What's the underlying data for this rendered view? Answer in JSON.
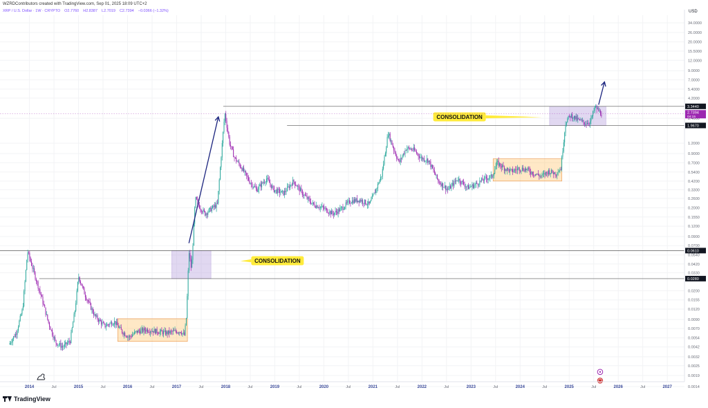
{
  "header": {
    "attribution": "WZRDContributors created with TradingView.com, Sep 01, 2025 18:09 UTC+2",
    "symbol": "XRP / U.S. Dollar · 1W · CRYPTO",
    "open": "O2.7760",
    "high": "H2.8387",
    "low": "L2.7019",
    "close": "C2.7394",
    "change": "−0.0366 (−1.32%)"
  },
  "brand": {
    "name": "TradingView",
    "icon": "tradingview-logo-icon"
  },
  "colors": {
    "up": "#26a69a",
    "down": "#9c27b0",
    "arrow": "#1a237e",
    "box_purple": "#d1c4e9",
    "box_orange": "#ffe0b2",
    "label_bg": "#ffeb3b",
    "label_price_purple": "#9c27b0"
  },
  "chart_data": {
    "type": "candlestick",
    "ylog": true,
    "ylim": [
      0.0016,
      42
    ],
    "xlim": [
      2013.4,
      2027.35
    ],
    "y_axis_title": "USD",
    "y_ticks": [
      34.0,
      26.0,
      20.0,
      15.5,
      12.0,
      9.0,
      7.0,
      5.4,
      4.2,
      2.4,
      1.2,
      0.9,
      0.7,
      0.54,
      0.42,
      0.33,
      0.26,
      0.2,
      0.155,
      0.12,
      0.09,
      0.07,
      0.054,
      0.042,
      0.033,
      0.02,
      0.0155,
      0.012,
      0.009,
      0.007,
      0.0054,
      0.0042,
      0.0032,
      0.0025,
      0.0019,
      0.0014
    ],
    "x_ticks": [
      {
        "t": 2014.0,
        "label": "2014",
        "major": true
      },
      {
        "t": 2014.5,
        "label": "Jul",
        "major": false
      },
      {
        "t": 2015.0,
        "label": "2015",
        "major": true
      },
      {
        "t": 2015.5,
        "label": "Jul",
        "major": false
      },
      {
        "t": 2016.0,
        "label": "2016",
        "major": true
      },
      {
        "t": 2016.5,
        "label": "Jul",
        "major": false
      },
      {
        "t": 2017.0,
        "label": "2017",
        "major": true
      },
      {
        "t": 2017.5,
        "label": "Jul",
        "major": false
      },
      {
        "t": 2018.0,
        "label": "2018",
        "major": true
      },
      {
        "t": 2018.5,
        "label": "Jul",
        "major": false
      },
      {
        "t": 2019.0,
        "label": "2019",
        "major": true
      },
      {
        "t": 2019.5,
        "label": "Jul",
        "major": false
      },
      {
        "t": 2020.0,
        "label": "2020",
        "major": true
      },
      {
        "t": 2020.5,
        "label": "Jul",
        "major": false
      },
      {
        "t": 2021.0,
        "label": "2021",
        "major": true
      },
      {
        "t": 2021.5,
        "label": "Jul",
        "major": false
      },
      {
        "t": 2022.0,
        "label": "2022",
        "major": true
      },
      {
        "t": 2022.5,
        "label": "Jul",
        "major": false
      },
      {
        "t": 2023.0,
        "label": "2023",
        "major": true
      },
      {
        "t": 2023.5,
        "label": "Jul",
        "major": false
      },
      {
        "t": 2024.0,
        "label": "2024",
        "major": true
      },
      {
        "t": 2024.5,
        "label": "Jul",
        "major": false
      },
      {
        "t": 2025.0,
        "label": "2025",
        "major": true
      },
      {
        "t": 2025.5,
        "label": "Jul",
        "major": false
      },
      {
        "t": 2026.0,
        "label": "2026",
        "major": true
      },
      {
        "t": 2026.5,
        "label": "Jul",
        "major": false
      },
      {
        "t": 2027.0,
        "label": "2027",
        "major": true
      }
    ],
    "price_path": [
      [
        2013.6,
        0.0045
      ],
      [
        2013.75,
        0.0062
      ],
      [
        2013.88,
        0.012
      ],
      [
        2013.98,
        0.06
      ],
      [
        2014.1,
        0.035
      ],
      [
        2014.25,
        0.018
      ],
      [
        2014.4,
        0.0085
      ],
      [
        2014.55,
        0.0048
      ],
      [
        2014.7,
        0.0042
      ],
      [
        2014.85,
        0.005
      ],
      [
        2014.95,
        0.012
      ],
      [
        2015.02,
        0.03
      ],
      [
        2015.15,
        0.018
      ],
      [
        2015.35,
        0.01
      ],
      [
        2015.55,
        0.0075
      ],
      [
        2015.75,
        0.0085
      ],
      [
        2015.9,
        0.0065
      ],
      [
        2016.05,
        0.0055
      ],
      [
        2016.2,
        0.0064
      ],
      [
        2016.4,
        0.0068
      ],
      [
        2016.6,
        0.0065
      ],
      [
        2016.8,
        0.0062
      ],
      [
        2016.95,
        0.0064
      ],
      [
        2017.1,
        0.0065
      ],
      [
        2017.18,
        0.0058
      ],
      [
        2017.22,
        0.01
      ],
      [
        2017.27,
        0.06
      ],
      [
        2017.32,
        0.035
      ],
      [
        2017.4,
        0.26
      ],
      [
        2017.5,
        0.2
      ],
      [
        2017.6,
        0.17
      ],
      [
        2017.75,
        0.2
      ],
      [
        2017.85,
        0.22
      ],
      [
        2017.93,
        0.9
      ],
      [
        2018.0,
        2.8
      ],
      [
        2018.1,
        1.2
      ],
      [
        2018.2,
        0.8
      ],
      [
        2018.35,
        0.6
      ],
      [
        2018.5,
        0.42
      ],
      [
        2018.65,
        0.33
      ],
      [
        2018.85,
        0.45
      ],
      [
        2019.0,
        0.33
      ],
      [
        2019.2,
        0.3
      ],
      [
        2019.4,
        0.42
      ],
      [
        2019.6,
        0.29
      ],
      [
        2019.8,
        0.22
      ],
      [
        2020.0,
        0.2
      ],
      [
        2020.2,
        0.17
      ],
      [
        2020.35,
        0.19
      ],
      [
        2020.55,
        0.24
      ],
      [
        2020.75,
        0.25
      ],
      [
        2020.95,
        0.22
      ],
      [
        2021.05,
        0.3
      ],
      [
        2021.2,
        0.5
      ],
      [
        2021.33,
        1.6
      ],
      [
        2021.45,
        1.0
      ],
      [
        2021.55,
        0.7
      ],
      [
        2021.7,
        1.05
      ],
      [
        2021.85,
        1.0
      ],
      [
        2022.0,
        0.8
      ],
      [
        2022.15,
        0.75
      ],
      [
        2022.35,
        0.42
      ],
      [
        2022.55,
        0.33
      ],
      [
        2022.75,
        0.45
      ],
      [
        2022.95,
        0.35
      ],
      [
        2023.1,
        0.38
      ],
      [
        2023.3,
        0.45
      ],
      [
        2023.45,
        0.48
      ],
      [
        2023.55,
        0.7
      ],
      [
        2023.7,
        0.6
      ],
      [
        2023.85,
        0.55
      ],
      [
        2024.0,
        0.6
      ],
      [
        2024.15,
        0.58
      ],
      [
        2024.3,
        0.52
      ],
      [
        2024.45,
        0.48
      ],
      [
        2024.6,
        0.55
      ],
      [
        2024.75,
        0.52
      ],
      [
        2024.85,
        0.6
      ],
      [
        2024.9,
        1.2
      ],
      [
        2024.95,
        2.2
      ],
      [
        2025.05,
        2.6
      ],
      [
        2025.2,
        2.3
      ],
      [
        2025.35,
        2.1
      ],
      [
        2025.45,
        2.2
      ],
      [
        2025.55,
        3.3
      ],
      [
        2025.63,
        2.9
      ],
      [
        2025.67,
        2.74
      ]
    ],
    "levels": [
      {
        "value": 3.344,
        "label": "3.3440",
        "style": "black",
        "t_start": 2017.95
      },
      {
        "value": 1.967,
        "label": "1.9670",
        "style": "black",
        "t_start": 2019.25
      },
      {
        "value": 0.061,
        "label": "0.0610",
        "style": "black",
        "t_start": 2013.4
      },
      {
        "value": 0.028,
        "label": "0.0280",
        "style": "black",
        "t_start": 2014.2
      }
    ],
    "last_price": {
      "value": 2.7394,
      "label": "2.7394",
      "countdown": "04:15"
    },
    "zones": [
      {
        "t0": 2016.9,
        "t1": 2017.7,
        "y_low": 0.028,
        "y_high": 0.061,
        "color": "purple"
      },
      {
        "t0": 2024.6,
        "t1": 2025.75,
        "y_low": 1.967,
        "y_high": 3.344,
        "color": "purple"
      },
      {
        "t0": 2015.8,
        "t1": 2017.22,
        "y_low": 0.0049,
        "y_high": 0.0092,
        "color": "orange"
      },
      {
        "t0": 2023.45,
        "t1": 2024.85,
        "y_low": 0.42,
        "y_high": 0.78,
        "color": "orange"
      }
    ],
    "annotations": [
      {
        "text": "CONSOLIDATION",
        "t": 2018.52,
        "y": 0.046,
        "pointer_t": 2018.3,
        "anchor": "left"
      },
      {
        "text": "CONSOLIDATION",
        "t": 2023.3,
        "y": 2.5,
        "pointer_t": 2024.45,
        "anchor": "right"
      }
    ],
    "arrows": [
      {
        "t0": 2017.25,
        "y0": 0.075,
        "t1": 2017.85,
        "y1": 2.5
      },
      {
        "t0": 2025.6,
        "y0": 3.5,
        "t1": 2025.72,
        "y1": 6.6
      }
    ],
    "event_markers": [
      {
        "t": 2025.63,
        "y": 0.0021,
        "symbol": "circle"
      },
      {
        "t": 2025.63,
        "y": 0.00165,
        "symbol": "flag"
      }
    ]
  }
}
